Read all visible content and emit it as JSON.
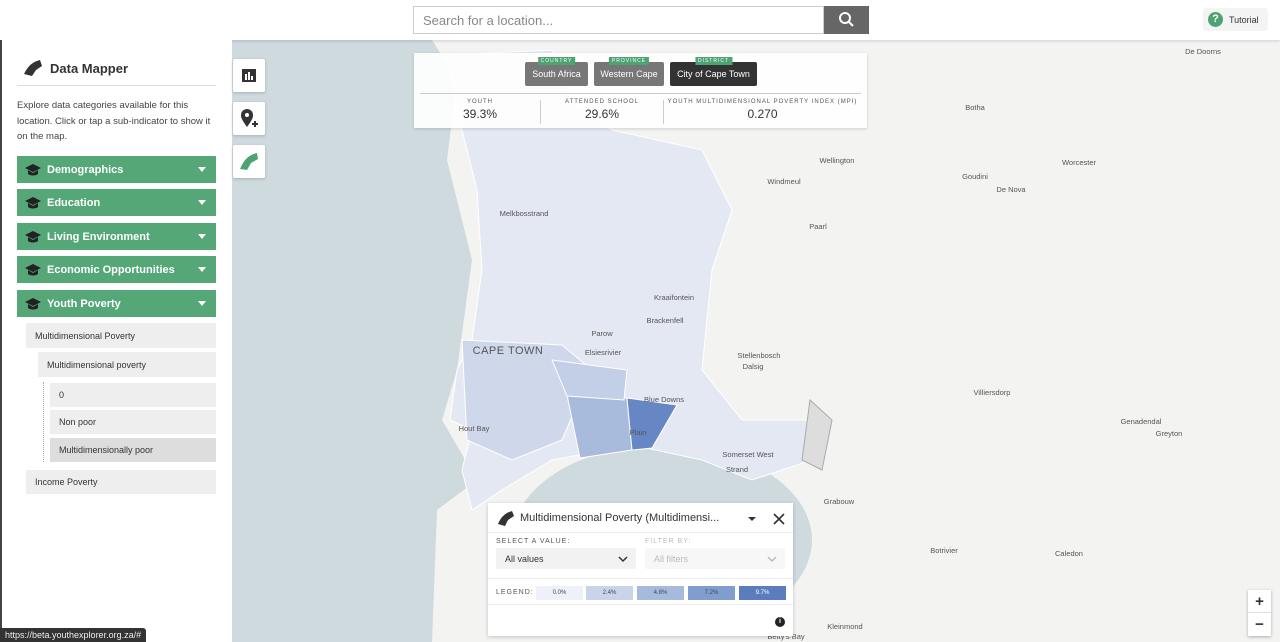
{
  "search": {
    "placeholder": "Search for a location...",
    "help_icon": "?",
    "tutorial": "Tutorial"
  },
  "sidebar": {
    "title": "Data Mapper",
    "description": "Explore data categories available for this location. Click or tap a sub-indicator to show it on the map.",
    "categories": [
      "Demographics",
      "Education",
      "Living Environment",
      "Economic Opportunities",
      "Youth Poverty"
    ],
    "subcategory": "Multidimensional Poverty",
    "indicator": "Multidimensional poverty",
    "values": [
      "0",
      "Non poor",
      "Multidimensionally poor"
    ],
    "other_subcategory": "Income Poverty"
  },
  "breadcrumbs": [
    {
      "level": "COUNTRY",
      "name": "South Africa"
    },
    {
      "level": "PROVINCE",
      "name": "Western Cape"
    },
    {
      "level": "DISTRICT",
      "name": "City of Cape Town"
    }
  ],
  "stats": [
    {
      "label": "YOUTH",
      "value": "39.3%"
    },
    {
      "label": "ATTENDED SCHOOL",
      "value": "29.6%"
    },
    {
      "label": "YOUTH MULTIDIMENSIONAL POVERTY INDEX (MPI)",
      "value": "0.270"
    }
  ],
  "map_labels": [
    "De Doorns",
    "Botha",
    "Wellington",
    "Worcester",
    "Windmeul",
    "Goudini",
    "De Nova",
    "Melkbosstrand",
    "Paarl",
    "Kraaifontein",
    "Brackenfell",
    "Parow",
    "CAPE TOWN",
    "Elsiesrivier",
    "Stellenbosch",
    "Dalsig",
    "Villiersdorp",
    "Blue Downs",
    "Hout Bay",
    "Plain",
    "Genadendal",
    "Greyton",
    "Somerset West",
    "Strand",
    "Grabouw",
    "Botrivier",
    "Caledon",
    "Kleinmond",
    "Betty's Bay"
  ],
  "panel": {
    "title": "Multidimensional Poverty (Multidimensi...",
    "select_label": "SELECT A VALUE:",
    "select_value": "All values",
    "filter_label": "FILTER BY:",
    "filter_value": "All filters",
    "legend_label": "LEGEND:",
    "legend": [
      "0.0%",
      "2.4%",
      "4.8%",
      "7.2%",
      "9.7%"
    ],
    "info": "i"
  },
  "zoom": {
    "in": "+",
    "out": "−"
  },
  "status_url": "https://beta.youthexplorer.org.za/#"
}
